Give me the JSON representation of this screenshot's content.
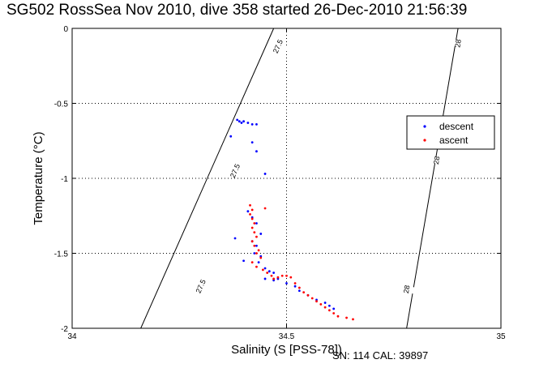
{
  "title": "SG502 RossSea Nov 2010, dive 358 started 26-Dec-2010 21:56:39",
  "footer": "SN: 114  CAL: 39897",
  "chart_data": {
    "type": "scatter",
    "title": "SG502 RossSea Nov 2010, dive 358 started 26-Dec-2010 21:56:39",
    "xlabel": "Salinity (S [PSS-78])",
    "ylabel": "Temperature (°C)",
    "xlim": [
      34,
      35
    ],
    "ylim": [
      -2,
      0
    ],
    "xticks": [
      34,
      34.5,
      35
    ],
    "yticks": [
      -2,
      -1.5,
      -1,
      -0.5,
      0
    ],
    "xtick_labels": [
      "34",
      "34.5",
      "35"
    ],
    "ytick_labels": [
      "-2",
      "-1.5",
      "-1",
      "-0.5",
      "0"
    ],
    "grid": true,
    "legend_position": "right",
    "series": [
      {
        "name": "descent",
        "color": "#0000ff",
        "points": [
          [
            34.385,
            -0.61
          ],
          [
            34.39,
            -0.62
          ],
          [
            34.395,
            -0.63
          ],
          [
            34.4,
            -0.62
          ],
          [
            34.41,
            -0.63
          ],
          [
            34.42,
            -0.64
          ],
          [
            34.43,
            -0.64
          ],
          [
            34.37,
            -0.72
          ],
          [
            34.42,
            -0.76
          ],
          [
            34.43,
            -0.82
          ],
          [
            34.45,
            -0.97
          ],
          [
            34.41,
            -1.22
          ],
          [
            34.42,
            -1.26
          ],
          [
            34.43,
            -1.3
          ],
          [
            34.44,
            -1.37
          ],
          [
            34.42,
            -1.42
          ],
          [
            34.43,
            -1.45
          ],
          [
            34.425,
            -1.5
          ],
          [
            34.44,
            -1.52
          ],
          [
            34.435,
            -1.56
          ],
          [
            34.38,
            -1.4
          ],
          [
            34.4,
            -1.55
          ],
          [
            34.45,
            -1.6
          ],
          [
            34.46,
            -1.62
          ],
          [
            34.47,
            -1.63
          ],
          [
            34.45,
            -1.67
          ],
          [
            34.47,
            -1.68
          ],
          [
            34.48,
            -1.67
          ],
          [
            34.5,
            -1.7
          ],
          [
            34.52,
            -1.72
          ],
          [
            34.53,
            -1.75
          ],
          [
            34.55,
            -1.78
          ],
          [
            34.57,
            -1.81
          ],
          [
            34.59,
            -1.83
          ],
          [
            34.6,
            -1.85
          ],
          [
            34.61,
            -1.87
          ]
        ]
      },
      {
        "name": "ascent",
        "color": "#ff0000",
        "points": [
          [
            34.415,
            -1.18
          ],
          [
            34.42,
            -1.21
          ],
          [
            34.415,
            -1.24
          ],
          [
            34.42,
            -1.27
          ],
          [
            34.425,
            -1.3
          ],
          [
            34.42,
            -1.33
          ],
          [
            34.425,
            -1.36
          ],
          [
            34.43,
            -1.39
          ],
          [
            34.42,
            -1.42
          ],
          [
            34.425,
            -1.45
          ],
          [
            34.435,
            -1.48
          ],
          [
            34.45,
            -1.2
          ],
          [
            34.43,
            -1.5
          ],
          [
            34.44,
            -1.53
          ],
          [
            34.42,
            -1.56
          ],
          [
            34.43,
            -1.59
          ],
          [
            34.445,
            -1.61
          ],
          [
            34.455,
            -1.63
          ],
          [
            34.465,
            -1.65
          ],
          [
            34.47,
            -1.67
          ],
          [
            34.48,
            -1.66
          ],
          [
            34.49,
            -1.65
          ],
          [
            34.5,
            -1.65
          ],
          [
            34.51,
            -1.66
          ],
          [
            34.52,
            -1.7
          ],
          [
            34.53,
            -1.73
          ],
          [
            34.54,
            -1.76
          ],
          [
            34.55,
            -1.78
          ],
          [
            34.56,
            -1.8
          ],
          [
            34.57,
            -1.82
          ],
          [
            34.58,
            -1.84
          ],
          [
            34.59,
            -1.86
          ],
          [
            34.6,
            -1.88
          ],
          [
            34.61,
            -1.9
          ],
          [
            34.62,
            -1.92
          ],
          [
            34.64,
            -1.93
          ],
          [
            34.655,
            -1.94
          ]
        ]
      }
    ],
    "isopycnals": [
      {
        "label": "27.5",
        "top": [
          34.47,
          0
        ],
        "bottom": [
          34.16,
          -2
        ],
        "label_positions": [
          [
            34.48,
            -0.12
          ],
          [
            34.38,
            -0.95
          ],
          [
            34.3,
            -1.72
          ]
        ]
      },
      {
        "label": "28",
        "top": [
          34.9,
          0
        ],
        "bottom": [
          34.78,
          -2
        ],
        "label_positions": [
          [
            34.9,
            -0.1
          ],
          [
            34.85,
            -0.88
          ],
          [
            34.78,
            -1.74
          ]
        ]
      }
    ]
  }
}
